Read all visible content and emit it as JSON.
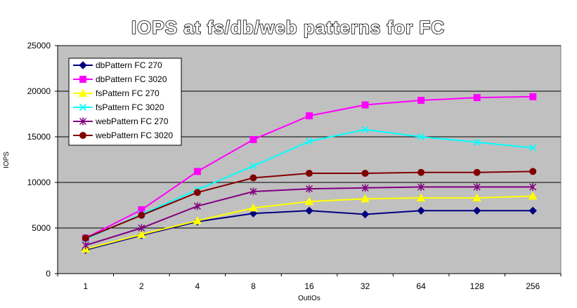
{
  "chart_data": {
    "type": "line",
    "title": "IOPS at fs/db/web patterns for FC",
    "xlabel": "OutIOs",
    "ylabel": "IOPS",
    "categories": [
      "1",
      "2",
      "4",
      "8",
      "16",
      "32",
      "64",
      "128",
      "256"
    ],
    "ylim": [
      0,
      25000
    ],
    "yticks": [
      0,
      5000,
      10000,
      15000,
      20000,
      25000
    ],
    "grid": true,
    "legend_position": "top-left",
    "series": [
      {
        "name": "dbPattern FC 270",
        "color": "#000080",
        "marker": "diamond",
        "values": [
          2600,
          4200,
          5700,
          6600,
          6900,
          6500,
          6900,
          6900,
          6900
        ]
      },
      {
        "name": "dbPattern FC 3020",
        "color": "#ff00ff",
        "marker": "square",
        "values": [
          3900,
          7000,
          11200,
          14700,
          17300,
          18500,
          19000,
          19300,
          19400
        ]
      },
      {
        "name": "fsPattern FC 270",
        "color": "#ffff00",
        "marker": "triangle",
        "values": [
          2700,
          4300,
          5800,
          7200,
          7900,
          8200,
          8300,
          8300,
          8500
        ]
      },
      {
        "name": "fsPattern FC 3020",
        "color": "#00ffff",
        "marker": "x",
        "values": [
          3800,
          6500,
          9200,
          11800,
          14500,
          15800,
          15000,
          14400,
          13800
        ]
      },
      {
        "name": "webPattern FC 270",
        "color": "#800080",
        "marker": "star",
        "values": [
          3100,
          5000,
          7400,
          9000,
          9300,
          9400,
          9500,
          9500,
          9500
        ]
      },
      {
        "name": "webPattern FC 3020",
        "color": "#800000",
        "marker": "circle",
        "values": [
          3900,
          6400,
          8900,
          10500,
          11000,
          11000,
          11100,
          11100,
          11200
        ]
      }
    ]
  }
}
